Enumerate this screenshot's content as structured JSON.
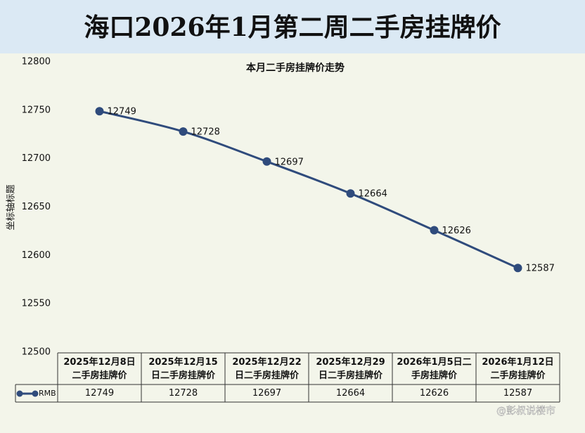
{
  "header": {
    "title": "海口2026年1月第二周二手房挂牌价"
  },
  "chart_data": {
    "type": "line",
    "title": "本月二手房挂牌价走势",
    "y_label": "坐标轴标题",
    "categories": [
      "2025年12月8日二手房挂牌价",
      "2025年12月15日二手房挂牌价",
      "2025年12月22日二手房挂牌价",
      "2025年12月29日二手房挂牌价",
      "2026年1月5日二手房挂牌价",
      "2026年1月12日二手房挂牌价"
    ],
    "series": [
      {
        "name": "RMB",
        "color": "#2f4b7c",
        "values": [
          12749,
          12728,
          12697,
          12664,
          12626,
          12587
        ]
      }
    ],
    "ylim": [
      12500,
      12800
    ],
    "yticks": [
      12500,
      12550,
      12600,
      12650,
      12700,
      12750,
      12800
    ]
  },
  "watermark": "@彭叔说楼市"
}
